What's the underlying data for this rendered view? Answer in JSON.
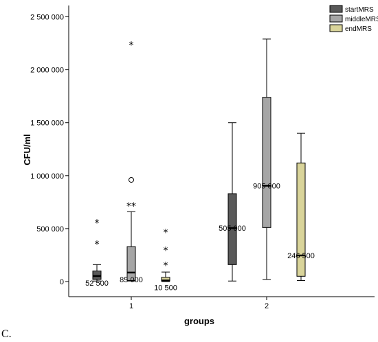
{
  "caption": "C.",
  "chart_data": {
    "type": "boxplot",
    "xlabel": "groups",
    "ylabel": "CFU/ml",
    "ylim": [
      0,
      2500000
    ],
    "ytick_values": [
      0,
      500000,
      1000000,
      1500000,
      2000000,
      2500000
    ],
    "ytick_labels": [
      "0",
      "500 000",
      "1 000 000",
      "1 500 000",
      "2 000 000",
      "2 500 000"
    ],
    "categories": [
      "1",
      "2"
    ],
    "legend": {
      "position": "top-right"
    },
    "series": [
      {
        "name": "startMRS",
        "color": "#595959",
        "boxes": [
          {
            "group": "1",
            "min": 5000,
            "q1": 20000,
            "median": 52500,
            "q3": 100000,
            "max": 160000,
            "median_label": "52 500",
            "outliers": [
              {
                "value": 560000,
                "marker": "star"
              },
              {
                "value": 360000,
                "marker": "star"
              }
            ]
          },
          {
            "group": "2",
            "min": 5000,
            "q1": 160000,
            "median": 505000,
            "q3": 830000,
            "max": 1500000,
            "median_label": "505 000",
            "outliers": []
          }
        ]
      },
      {
        "name": "middleMRS",
        "color": "#a6a6a6",
        "boxes": [
          {
            "group": "1",
            "min": 5000,
            "q1": 10000,
            "median": 85000,
            "q3": 330000,
            "max": 660000,
            "median_label": "85 000",
            "outliers": [
              {
                "value": 2240000,
                "marker": "star"
              },
              {
                "value": 960000,
                "marker": "circle"
              },
              {
                "value": 720000,
                "marker": "star"
              },
              {
                "value": 720000,
                "marker": "star"
              }
            ]
          },
          {
            "group": "2",
            "min": 20000,
            "q1": 510000,
            "median": 905000,
            "q3": 1740000,
            "max": 2290000,
            "median_label": "905 000",
            "outliers": []
          }
        ]
      },
      {
        "name": "endMRS",
        "color": "#d9d49a",
        "boxes": [
          {
            "group": "1",
            "min": 0,
            "q1": 5000,
            "median": 10500,
            "q3": 40000,
            "max": 90000,
            "median_label": "10 500",
            "outliers": [
              {
                "value": 470000,
                "marker": "star"
              },
              {
                "value": 300000,
                "marker": "star"
              },
              {
                "value": 160000,
                "marker": "star"
              }
            ]
          },
          {
            "group": "2",
            "min": 10000,
            "q1": 50000,
            "median": 246500,
            "q3": 1120000,
            "max": 1400000,
            "median_label": "246 500",
            "outliers": []
          }
        ]
      }
    ]
  }
}
